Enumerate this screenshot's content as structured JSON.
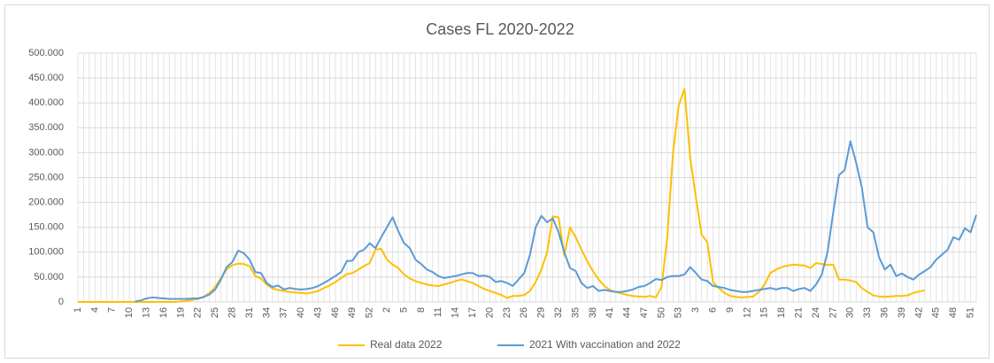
{
  "chart_data": {
    "type": "line",
    "title": "Cases FL 2020-2022",
    "categories": [
      "1",
      null,
      null,
      "4",
      null,
      null,
      "7",
      null,
      null,
      "10",
      null,
      null,
      "13",
      null,
      null,
      "16",
      null,
      null,
      "19",
      null,
      null,
      "22",
      null,
      null,
      "25",
      null,
      null,
      "28",
      null,
      null,
      "31",
      null,
      null,
      "34",
      null,
      null,
      "37",
      null,
      null,
      "40",
      null,
      null,
      "43",
      null,
      null,
      "46",
      null,
      null,
      "49",
      null,
      null,
      "52",
      null,
      null,
      "2",
      null,
      null,
      "5",
      null,
      null,
      "8",
      null,
      null,
      "11",
      null,
      null,
      "14",
      null,
      null,
      "17",
      null,
      null,
      "20",
      null,
      null,
      "23",
      null,
      null,
      "26",
      null,
      null,
      "29",
      null,
      null,
      "32",
      null,
      null,
      "35",
      null,
      null,
      "38",
      null,
      null,
      "41",
      null,
      null,
      "44",
      null,
      null,
      "47",
      null,
      null,
      "50",
      null,
      null,
      "53",
      null,
      null,
      "3",
      null,
      null,
      "6",
      null,
      null,
      "9",
      null,
      null,
      "12",
      null,
      null,
      "15",
      null,
      null,
      "18",
      null,
      null,
      "21",
      null,
      null,
      "24",
      null,
      null,
      "27",
      null,
      null,
      "30",
      null,
      null,
      "33",
      null,
      null,
      "36",
      null,
      null,
      "39",
      null,
      null,
      "42",
      null,
      null,
      "45",
      null,
      null,
      "48",
      null,
      null,
      "51",
      null
    ],
    "series": [
      {
        "name": "Real data 2022",
        "color": "#FFC000",
        "values": [
          0,
          0,
          0,
          0,
          0,
          0,
          0,
          0,
          0,
          0,
          0,
          0,
          0,
          0,
          0,
          0,
          0,
          0,
          1000,
          2000,
          4000,
          6000,
          10000,
          18000,
          30000,
          48000,
          65000,
          74000,
          77000,
          76000,
          72000,
          52000,
          47000,
          35000,
          27000,
          24000,
          22000,
          20000,
          19000,
          18000,
          17000,
          19000,
          22000,
          28000,
          33000,
          40000,
          48000,
          56000,
          58000,
          65000,
          72000,
          78000,
          105000,
          107000,
          85000,
          75000,
          68000,
          55000,
          47000,
          42000,
          38000,
          35000,
          33000,
          32000,
          35000,
          38000,
          42000,
          45000,
          42000,
          38000,
          32000,
          26000,
          22000,
          18000,
          14000,
          8000,
          12000,
          12000,
          14000,
          22000,
          40000,
          65000,
          100000,
          172000,
          170000,
          93000,
          150000,
          130000,
          105000,
          82000,
          62000,
          45000,
          32000,
          24000,
          20000,
          17000,
          14000,
          12000,
          11000,
          10000,
          12000,
          9000,
          30000,
          130000,
          300000,
          395000,
          428000,
          290000,
          210000,
          135000,
          120000,
          40000,
          28000,
          18000,
          12000,
          10000,
          9000,
          10000,
          11000,
          20000,
          35000,
          58000,
          65000,
          70000,
          73000,
          75000,
          74000,
          73000,
          68000,
          78000,
          76000,
          74000,
          75000,
          45000,
          45000,
          43000,
          40000,
          28000,
          20000,
          13000,
          11000,
          10000,
          11000,
          12000,
          12000,
          13000,
          18000,
          21000,
          23000,
          null,
          null,
          null,
          null,
          null,
          null,
          null,
          null,
          null
        ]
      },
      {
        "name": "2021 With vaccination and 2022",
        "color": "#5B9BD5",
        "values": [
          null,
          null,
          null,
          null,
          null,
          null,
          null,
          null,
          null,
          null,
          1000,
          3000,
          7000,
          9000,
          8000,
          7000,
          6000,
          6000,
          6000,
          6000,
          7000,
          7000,
          10000,
          15000,
          25000,
          45000,
          70000,
          80000,
          103000,
          98000,
          85000,
          60000,
          58000,
          38000,
          30000,
          33000,
          25000,
          28000,
          26000,
          25000,
          26000,
          28000,
          32000,
          38000,
          45000,
          52000,
          60000,
          82000,
          83000,
          100000,
          105000,
          118000,
          108000,
          130000,
          150000,
          170000,
          142000,
          118000,
          108000,
          85000,
          76000,
          65000,
          60000,
          52000,
          48000,
          50000,
          52000,
          55000,
          58000,
          58000,
          52000,
          53000,
          50000,
          40000,
          42000,
          38000,
          32000,
          45000,
          58000,
          95000,
          150000,
          173000,
          160000,
          168000,
          140000,
          100000,
          68000,
          62000,
          38000,
          28000,
          32000,
          22000,
          24000,
          22000,
          20000,
          20000,
          22000,
          25000,
          30000,
          32000,
          38000,
          46000,
          44000,
          50000,
          52000,
          52000,
          55000,
          70000,
          58000,
          45000,
          42000,
          32000,
          30000,
          28000,
          24000,
          22000,
          20000,
          20000,
          22000,
          24000,
          26000,
          28000,
          25000,
          28000,
          28000,
          22000,
          26000,
          28000,
          22000,
          35000,
          55000,
          100000,
          180000,
          255000,
          265000,
          323000,
          280000,
          230000,
          150000,
          140000,
          90000,
          65000,
          75000,
          52000,
          57000,
          50000,
          45000,
          55000,
          62000,
          70000,
          85000,
          95000,
          105000,
          130000,
          125000,
          148000,
          140000,
          175000
        ]
      }
    ],
    "ylim": [
      0,
      500000
    ],
    "yticks": [
      0,
      {
        "value": 50000,
        "label": "50.000"
      },
      {
        "value": 100000,
        "label": "100.000"
      },
      {
        "value": 150000,
        "label": "150.000"
      },
      {
        "value": 200000,
        "label": "200.000"
      },
      {
        "value": 250000,
        "label": "250.000"
      },
      {
        "value": 300000,
        "label": "300.000"
      },
      {
        "value": 350000,
        "label": "350.000"
      },
      {
        "value": 400000,
        "label": "400.000"
      },
      {
        "value": 450000,
        "label": "450.000"
      },
      {
        "value": 500000,
        "label": "500.000"
      }
    ],
    "grid": true,
    "legend": "bottom"
  }
}
